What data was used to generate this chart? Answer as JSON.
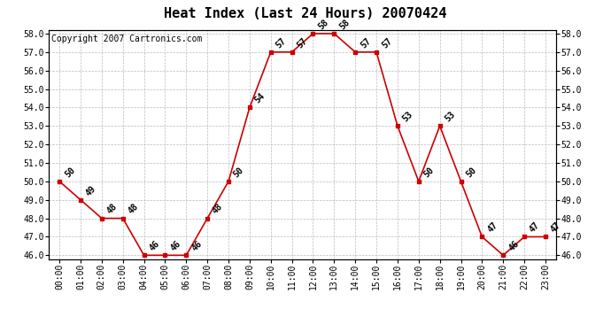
{
  "title": "Heat Index (Last 24 Hours) 20070424",
  "copyright": "Copyright 2007 Cartronics.com",
  "hours": [
    "00:00",
    "01:00",
    "02:00",
    "03:00",
    "04:00",
    "05:00",
    "06:00",
    "07:00",
    "08:00",
    "09:00",
    "10:00",
    "11:00",
    "12:00",
    "13:00",
    "14:00",
    "15:00",
    "16:00",
    "17:00",
    "18:00",
    "19:00",
    "20:00",
    "21:00",
    "22:00",
    "23:00"
  ],
  "values": [
    50,
    49,
    48,
    48,
    46,
    46,
    46,
    48,
    50,
    54,
    57,
    57,
    58,
    58,
    57,
    57,
    53,
    50,
    53,
    50,
    47,
    46,
    47,
    47
  ],
  "ylim_min": 45.8,
  "ylim_max": 58.2,
  "ytick_min": 46.0,
  "ytick_max": 58.0,
  "ytick_step": 1.0,
  "line_color": "#cc0000",
  "marker_color": "#cc0000",
  "background_color": "#ffffff",
  "grid_color": "#bbbbbb",
  "title_fontsize": 11,
  "copyright_fontsize": 7,
  "label_fontsize": 7,
  "tick_fontsize": 7
}
